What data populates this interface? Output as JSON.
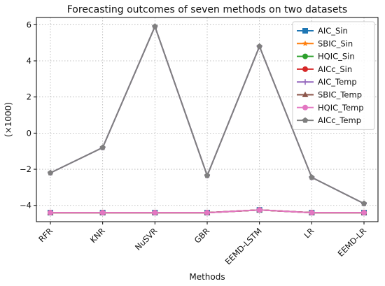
{
  "chart_data": {
    "type": "line",
    "title": "Forecasting outcomes of seven methods on two datasets",
    "xlabel": "Methods",
    "ylabel": "(×1000)",
    "categories": [
      "RFR",
      "KNR",
      "NuSVR",
      "GBR",
      "EEMD-LSTM",
      "LR",
      "EEMD-LR"
    ],
    "ylim": [
      -4.9,
      6.4
    ],
    "yticks": [
      -4,
      -2,
      0,
      2,
      4,
      6
    ],
    "grid": true,
    "legend_position": "top-right",
    "series": [
      {
        "name": "AIC_Sin",
        "color": "#1f77b4",
        "marker": "square",
        "values": [
          -4.4,
          -4.4,
          -4.4,
          -4.4,
          -4.25,
          -4.4,
          -4.4
        ]
      },
      {
        "name": "SBIC_Sin",
        "color": "#ff7f0e",
        "marker": "star",
        "values": [
          -4.4,
          -4.4,
          -4.4,
          -4.4,
          -4.25,
          -4.4,
          -4.4
        ]
      },
      {
        "name": "HQIC_Sin",
        "color": "#2ca02c",
        "marker": "circle",
        "values": [
          -4.4,
          -4.4,
          -4.4,
          -4.4,
          -4.25,
          -4.4,
          -4.4
        ]
      },
      {
        "name": "AICc_Sin",
        "color": "#d62728",
        "marker": "circle",
        "values": [
          -4.4,
          -4.4,
          -4.4,
          -4.4,
          -4.25,
          -4.4,
          -4.4
        ]
      },
      {
        "name": "AIC_Temp",
        "color": "#9467bd",
        "marker": "plus",
        "values": [
          -2.2,
          -0.8,
          5.9,
          -2.35,
          4.8,
          -2.45,
          -3.9
        ]
      },
      {
        "name": "SBIC_Temp",
        "color": "#8c564b",
        "marker": "triangle",
        "values": [
          -4.4,
          -4.4,
          -4.4,
          -4.4,
          -4.25,
          -4.4,
          -4.4
        ]
      },
      {
        "name": "HQIC_Temp",
        "color": "#e377c2",
        "marker": "circle",
        "values": [
          -4.4,
          -4.4,
          -4.4,
          -4.4,
          -4.25,
          -4.4,
          -4.4
        ]
      },
      {
        "name": "AICc_Temp",
        "color": "#7f7f7f",
        "marker": "pentagon",
        "values": [
          -2.2,
          -0.8,
          5.9,
          -2.35,
          4.8,
          -2.45,
          -3.9
        ]
      }
    ]
  }
}
